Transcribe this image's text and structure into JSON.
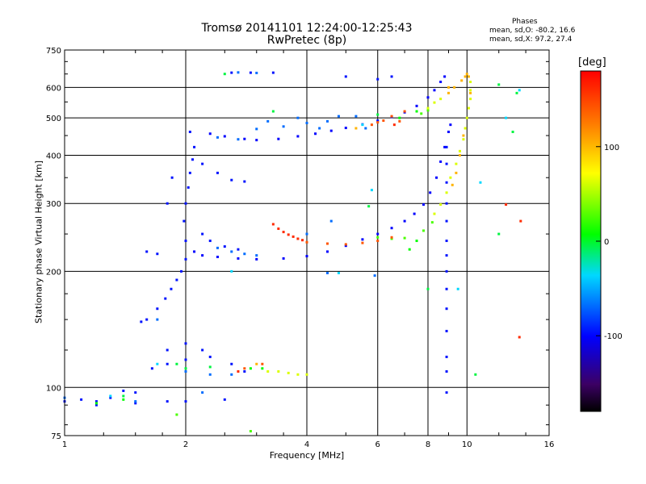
{
  "chart_data": {
    "type": "scatter",
    "title": "Tromsø 20141101 12:24:00-12:25:43",
    "subtitle": "RwPretec (8p)",
    "xlabel": "Frequency [MHz]",
    "ylabel": "Stationary phase Virtual Height [km]",
    "x_scale": "log2",
    "y_scale": "log",
    "xlim": [
      1,
      16
    ],
    "ylim": [
      75,
      750
    ],
    "x_ticks": [
      1,
      2,
      4,
      6,
      8,
      10,
      16
    ],
    "y_ticks": [
      75,
      100,
      200,
      300,
      400,
      500,
      600,
      750
    ],
    "grid": true,
    "phase_stats": {
      "heading": "Phases",
      "o_text": "mean, sd,O:  -80.2, 16.6",
      "x_text": "mean, sd,X:  97.2, 27.4"
    },
    "colorbar": {
      "unit": "[deg]",
      "range": [
        -180,
        180
      ],
      "ticks": [
        100,
        0,
        -100
      ]
    },
    "series": [
      {
        "phase": -100,
        "points": [
          [
            2.3,
            455
          ],
          [
            2.5,
            448
          ],
          [
            2.8,
            441
          ],
          [
            3.0,
            438
          ],
          [
            3.4,
            441
          ],
          [
            3.8,
            448
          ],
          [
            4.2,
            455
          ],
          [
            4.6,
            463
          ],
          [
            5.0,
            471
          ],
          [
            5.5,
            481
          ],
          [
            6.0,
            492
          ],
          [
            6.5,
            503
          ],
          [
            7.0,
            517
          ],
          [
            7.5,
            537
          ],
          [
            8.0,
            565
          ],
          [
            8.3,
            590
          ],
          [
            8.6,
            620
          ],
          [
            8.8,
            640
          ],
          [
            2.1,
            225
          ],
          [
            2.2,
            220
          ],
          [
            2.4,
            218
          ],
          [
            2.7,
            216
          ],
          [
            3.0,
            215
          ],
          [
            3.5,
            216
          ],
          [
            4.0,
            219
          ],
          [
            4.5,
            225
          ],
          [
            5.0,
            233
          ],
          [
            5.5,
            242
          ],
          [
            6.0,
            250
          ],
          [
            6.5,
            259
          ],
          [
            7.0,
            270
          ],
          [
            7.4,
            282
          ],
          [
            7.8,
            298
          ],
          [
            8.1,
            320
          ],
          [
            8.4,
            350
          ],
          [
            8.6,
            385
          ],
          [
            8.8,
            420
          ],
          [
            9.0,
            460
          ],
          [
            9.1,
            480
          ]
        ]
      },
      {
        "phase": -95,
        "points": [
          [
            1.55,
            148
          ],
          [
            1.6,
            150
          ],
          [
            1.7,
            160
          ],
          [
            1.78,
            170
          ],
          [
            1.84,
            180
          ],
          [
            1.9,
            190
          ],
          [
            1.95,
            200
          ],
          [
            2.0,
            215
          ],
          [
            2.0,
            240
          ],
          [
            1.98,
            270
          ],
          [
            2.0,
            300
          ],
          [
            2.03,
            330
          ],
          [
            2.05,
            360
          ],
          [
            2.08,
            390
          ],
          [
            2.1,
            420
          ],
          [
            2.05,
            460
          ],
          [
            1.8,
            300
          ],
          [
            1.85,
            350
          ],
          [
            1.6,
            225
          ],
          [
            1.7,
            222
          ],
          [
            2.2,
            380
          ],
          [
            2.4,
            360
          ],
          [
            2.6,
            345
          ],
          [
            2.8,
            342
          ],
          [
            2.2,
            250
          ],
          [
            2.3,
            240
          ],
          [
            2.5,
            232
          ],
          [
            2.7,
            228
          ],
          [
            1.65,
            112
          ],
          [
            1.8,
            115
          ],
          [
            2.0,
            118
          ],
          [
            2.3,
            120
          ],
          [
            2.6,
            115
          ],
          [
            2.8,
            110
          ],
          [
            1.8,
            125
          ],
          [
            2.0,
            130
          ],
          [
            2.2,
            125
          ],
          [
            1.0,
            92
          ],
          [
            1.1,
            93
          ],
          [
            1.2,
            92
          ],
          [
            1.3,
            94
          ],
          [
            1.4,
            98
          ],
          [
            1.5,
            97
          ],
          [
            1.2,
            90
          ],
          [
            1.5,
            91
          ],
          [
            1.8,
            92
          ],
          [
            2.0,
            92
          ],
          [
            2.5,
            93
          ],
          [
            8.9,
            420
          ],
          [
            8.9,
            380
          ],
          [
            8.9,
            340
          ],
          [
            8.9,
            300
          ],
          [
            8.9,
            270
          ],
          [
            8.9,
            240
          ],
          [
            8.9,
            220
          ],
          [
            8.9,
            200
          ],
          [
            8.9,
            180
          ],
          [
            8.9,
            160
          ],
          [
            8.9,
            140
          ],
          [
            8.9,
            120
          ],
          [
            8.9,
            110
          ],
          [
            8.9,
            97
          ],
          [
            5.0,
            640
          ],
          [
            6.0,
            630
          ],
          [
            6.5,
            640
          ],
          [
            2.6,
            655
          ],
          [
            2.9,
            655
          ],
          [
            3.3,
            655
          ]
        ]
      },
      {
        "phase": -70,
        "points": [
          [
            3.5,
            475
          ],
          [
            4.0,
            485
          ],
          [
            4.5,
            490
          ],
          [
            4.8,
            505
          ],
          [
            5.3,
            505
          ],
          [
            3.8,
            500
          ],
          [
            4.3,
            470
          ],
          [
            2.4,
            445
          ],
          [
            2.7,
            440
          ],
          [
            3.0,
            468
          ],
          [
            3.2,
            490
          ],
          [
            2.4,
            230
          ],
          [
            2.6,
            225
          ],
          [
            2.8,
            222
          ],
          [
            3.0,
            220
          ],
          [
            1.7,
            150
          ],
          [
            2.0,
            110
          ],
          [
            2.3,
            108
          ],
          [
            2.6,
            108
          ],
          [
            1.0,
            94
          ],
          [
            2.2,
            97
          ],
          [
            1.5,
            92
          ],
          [
            2.7,
            656
          ],
          [
            3.0,
            654
          ],
          [
            5.6,
            470
          ],
          [
            4.5,
            198
          ],
          [
            5.9,
            195
          ],
          [
            4.0,
            250
          ],
          [
            4.6,
            270
          ]
        ]
      },
      {
        "phase": -40,
        "points": [
          [
            4.8,
            198
          ],
          [
            5.5,
            480
          ],
          [
            5.8,
            325
          ],
          [
            2.6,
            200
          ],
          [
            1.7,
            115
          ],
          [
            1.3,
            95
          ],
          [
            9.5,
            180
          ],
          [
            12.5,
            500
          ],
          [
            13.5,
            590
          ],
          [
            10.8,
            340
          ]
        ]
      },
      {
        "phase": -10,
        "points": [
          [
            1.4,
            95
          ],
          [
            1.9,
            115
          ],
          [
            2.0,
            112
          ],
          [
            2.3,
            113
          ],
          [
            5.7,
            295
          ],
          [
            8.0,
            180
          ],
          [
            10.5,
            108
          ],
          [
            12.0,
            250
          ],
          [
            13.0,
            460
          ],
          [
            2.5,
            650
          ],
          [
            3.3,
            520
          ],
          [
            6.0,
            510
          ],
          [
            12.0,
            610
          ],
          [
            13.3,
            580
          ]
        ]
      },
      {
        "phase": 0,
        "points": [
          [
            1.2,
            91
          ],
          [
            1.4,
            93
          ],
          [
            2.9,
            112
          ],
          [
            3.1,
            112
          ],
          [
            7.5,
            520
          ],
          [
            7.2,
            228
          ],
          [
            7.5,
            240
          ],
          [
            6.8,
            500
          ]
        ]
      },
      {
        "phase": 20,
        "points": [
          [
            6.0,
            245
          ],
          [
            6.5,
            243
          ],
          [
            7.0,
            244
          ],
          [
            7.7,
            513
          ],
          [
            8.0,
            523
          ],
          [
            7.8,
            255
          ],
          [
            8.2,
            268
          ],
          [
            1.9,
            85
          ],
          [
            2.9,
            77
          ]
        ]
      },
      {
        "phase": 60,
        "points": [
          [
            8.0,
            530
          ],
          [
            8.3,
            548
          ],
          [
            8.6,
            560
          ],
          [
            8.3,
            282
          ],
          [
            8.6,
            298
          ],
          [
            8.9,
            320
          ],
          [
            9.1,
            350
          ],
          [
            9.4,
            380
          ],
          [
            9.6,
            410
          ],
          [
            9.8,
            440
          ],
          [
            9.9,
            470
          ],
          [
            10.0,
            500
          ],
          [
            10.1,
            530
          ],
          [
            10.2,
            560
          ],
          [
            10.2,
            590
          ],
          [
            10.2,
            620
          ],
          [
            3.4,
            110
          ],
          [
            3.6,
            109
          ],
          [
            3.8,
            108
          ],
          [
            4.0,
            108
          ],
          [
            3.2,
            110
          ]
        ]
      },
      {
        "phase": 100,
        "points": [
          [
            9.0,
            580
          ],
          [
            9.3,
            600
          ],
          [
            9.7,
            625
          ],
          [
            9.9,
            640
          ],
          [
            10.0,
            650
          ],
          [
            10.1,
            640
          ],
          [
            9.8,
            450
          ],
          [
            9.6,
            400
          ],
          [
            9.4,
            360
          ],
          [
            9.2,
            335
          ],
          [
            3.0,
            115
          ],
          [
            9.0,
            600
          ],
          [
            10.2,
            580
          ],
          [
            5.3,
            470
          ]
        ]
      },
      {
        "phase": 140,
        "points": [
          [
            4.0,
            238
          ],
          [
            4.5,
            236
          ],
          [
            5.0,
            235
          ],
          [
            5.5,
            237
          ],
          [
            6.0,
            240
          ],
          [
            6.5,
            245
          ],
          [
            5.8,
            480
          ],
          [
            6.0,
            487
          ],
          [
            6.2,
            492
          ],
          [
            6.5,
            505
          ],
          [
            7.0,
            520
          ],
          [
            2.8,
            112
          ],
          [
            3.1,
            115
          ],
          [
            6.8,
            490
          ]
        ]
      },
      {
        "phase": 160,
        "points": [
          [
            3.3,
            265
          ],
          [
            3.4,
            258
          ],
          [
            3.5,
            253
          ],
          [
            3.6,
            249
          ],
          [
            3.7,
            246
          ],
          [
            3.8,
            243
          ],
          [
            3.9,
            241
          ],
          [
            6.6,
            480
          ],
          [
            12.5,
            298
          ],
          [
            13.5,
            135
          ],
          [
            2.7,
            110
          ],
          [
            13.6,
            270
          ]
        ]
      }
    ]
  }
}
